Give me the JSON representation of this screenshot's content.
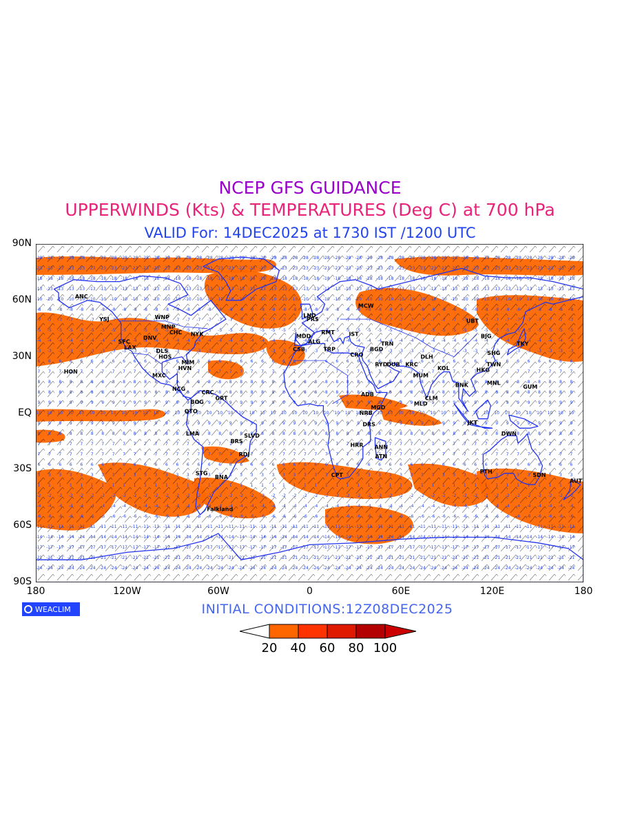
{
  "title_line1": "NCEP GFS GUIDANCE",
  "title_line2": "UPPERWINDS (Kts) & TEMPERATURES (Deg C) at 700 hPa",
  "title_line3": "VALID For: 14DEC2025 at 1730 IST /1200 UTC",
  "initial_conditions": "INITIAL  CONDITIONS:12Z08DEC2025",
  "logo_text": "WEACLIM",
  "lat_labels": [
    "90N",
    "60N",
    "30N",
    "EQ",
    "30S",
    "60S",
    "90S"
  ],
  "lon_labels": [
    "180",
    "120W",
    "60W",
    "0",
    "60E",
    "120E",
    "180"
  ],
  "colorbar": {
    "labels": [
      "20",
      "40",
      "60",
      "80",
      "100"
    ],
    "colors": [
      "#ffffff",
      "#ff6600",
      "#ff3300",
      "#e01a00",
      "#b30000",
      "#cc0000"
    ]
  },
  "colors": {
    "title1": "#9900cc",
    "title2": "#e8247a",
    "title3": "#2244ee",
    "initial": "#4466ee",
    "coastline": "#2233ee",
    "wind_shading": "#ff6600",
    "temp_values": "#2244ee",
    "logo_bg": "#2244ff"
  },
  "stations": [
    {
      "name": "ANC",
      "lon": -150,
      "lat": 61
    },
    {
      "name": "YSJ",
      "lon": -135,
      "lat": 49
    },
    {
      "name": "WNP",
      "lon": -97,
      "lat": 50
    },
    {
      "name": "MNP",
      "lon": -93,
      "lat": 45
    },
    {
      "name": "CHC",
      "lon": -88,
      "lat": 42
    },
    {
      "name": "DNV",
      "lon": -105,
      "lat": 39
    },
    {
      "name": "NYK",
      "lon": -74,
      "lat": 41
    },
    {
      "name": "SFC",
      "lon": -122,
      "lat": 37
    },
    {
      "name": "LAX",
      "lon": -118,
      "lat": 34
    },
    {
      "name": "DLS",
      "lon": -97,
      "lat": 32
    },
    {
      "name": "HOS",
      "lon": -95,
      "lat": 29
    },
    {
      "name": "MIM",
      "lon": -80,
      "lat": 26
    },
    {
      "name": "HVN",
      "lon": -82,
      "lat": 23
    },
    {
      "name": "HON",
      "lon": -157,
      "lat": 21
    },
    {
      "name": "MXC",
      "lon": -99,
      "lat": 19
    },
    {
      "name": "NCG",
      "lon": -86,
      "lat": 12
    },
    {
      "name": "CRC",
      "lon": -67,
      "lat": 10
    },
    {
      "name": "BOG",
      "lon": -74,
      "lat": 5
    },
    {
      "name": "GRT",
      "lon": -58,
      "lat": 7
    },
    {
      "name": "QTO",
      "lon": -78,
      "lat": 0
    },
    {
      "name": "LMA",
      "lon": -77,
      "lat": -12
    },
    {
      "name": "BRS",
      "lon": -48,
      "lat": -16
    },
    {
      "name": "SLVD",
      "lon": -38,
      "lat": -13
    },
    {
      "name": "RDJ",
      "lon": -43,
      "lat": -23
    },
    {
      "name": "STG",
      "lon": -71,
      "lat": -33
    },
    {
      "name": "BNA",
      "lon": -58,
      "lat": -35
    },
    {
      "name": "Falkland",
      "lon": -59,
      "lat": -52
    },
    {
      "name": "LND",
      "lon": 0,
      "lat": 51
    },
    {
      "name": "PRS",
      "lon": 2,
      "lat": 49
    },
    {
      "name": "MDD",
      "lon": -4,
      "lat": 40
    },
    {
      "name": "ALG",
      "lon": 3,
      "lat": 37
    },
    {
      "name": "CSB",
      "lon": -7,
      "lat": 33
    },
    {
      "name": "TRP",
      "lon": 13,
      "lat": 33
    },
    {
      "name": "CRO",
      "lon": 31,
      "lat": 30
    },
    {
      "name": "RYD",
      "lon": 47,
      "lat": 25
    },
    {
      "name": "DUB",
      "lon": 55,
      "lat": 25
    },
    {
      "name": "ADB",
      "lon": 38,
      "lat": 9
    },
    {
      "name": "NRB",
      "lon": 37,
      "lat": -1
    },
    {
      "name": "DRS",
      "lon": 39,
      "lat": -7
    },
    {
      "name": "MGD",
      "lon": 45,
      "lat": 2
    },
    {
      "name": "ANN",
      "lon": 47,
      "lat": -19
    },
    {
      "name": "HRR",
      "lon": 31,
      "lat": -18
    },
    {
      "name": "ATN",
      "lon": 47,
      "lat": -24
    },
    {
      "name": "CPT",
      "lon": 18,
      "lat": -34
    },
    {
      "name": "MCW",
      "lon": 37,
      "lat": 56
    },
    {
      "name": "RMT",
      "lon": 12,
      "lat": 42
    },
    {
      "name": "IST",
      "lon": 29,
      "lat": 41
    },
    {
      "name": "BGD",
      "lon": 44,
      "lat": 33
    },
    {
      "name": "TRN",
      "lon": 51,
      "lat": 36
    },
    {
      "name": "MUM",
      "lon": 73,
      "lat": 19
    },
    {
      "name": "KRC",
      "lon": 67,
      "lat": 25
    },
    {
      "name": "DLH",
      "lon": 77,
      "lat": 29
    },
    {
      "name": "KOL",
      "lon": 88,
      "lat": 23
    },
    {
      "name": "CLM",
      "lon": 80,
      "lat": 7
    },
    {
      "name": "MLD",
      "lon": 73,
      "lat": 4
    },
    {
      "name": "BNK",
      "lon": 100,
      "lat": 14
    },
    {
      "name": "UBT",
      "lon": 107,
      "lat": 48
    },
    {
      "name": "BJG",
      "lon": 116,
      "lat": 40
    },
    {
      "name": "SHG",
      "lon": 121,
      "lat": 31
    },
    {
      "name": "TKY",
      "lon": 140,
      "lat": 36
    },
    {
      "name": "HKG",
      "lon": 114,
      "lat": 22
    },
    {
      "name": "TWN",
      "lon": 121,
      "lat": 25
    },
    {
      "name": "MNL",
      "lon": 121,
      "lat": 15
    },
    {
      "name": "GUM",
      "lon": 145,
      "lat": 13
    },
    {
      "name": "JKT",
      "lon": 107,
      "lat": -6
    },
    {
      "name": "DWN",
      "lon": 131,
      "lat": -12
    },
    {
      "name": "PTH",
      "lon": 116,
      "lat": -32
    },
    {
      "name": "SDN",
      "lon": 151,
      "lat": -34
    },
    {
      "name": "AUT",
      "lon": 175,
      "lat": -37
    }
  ]
}
